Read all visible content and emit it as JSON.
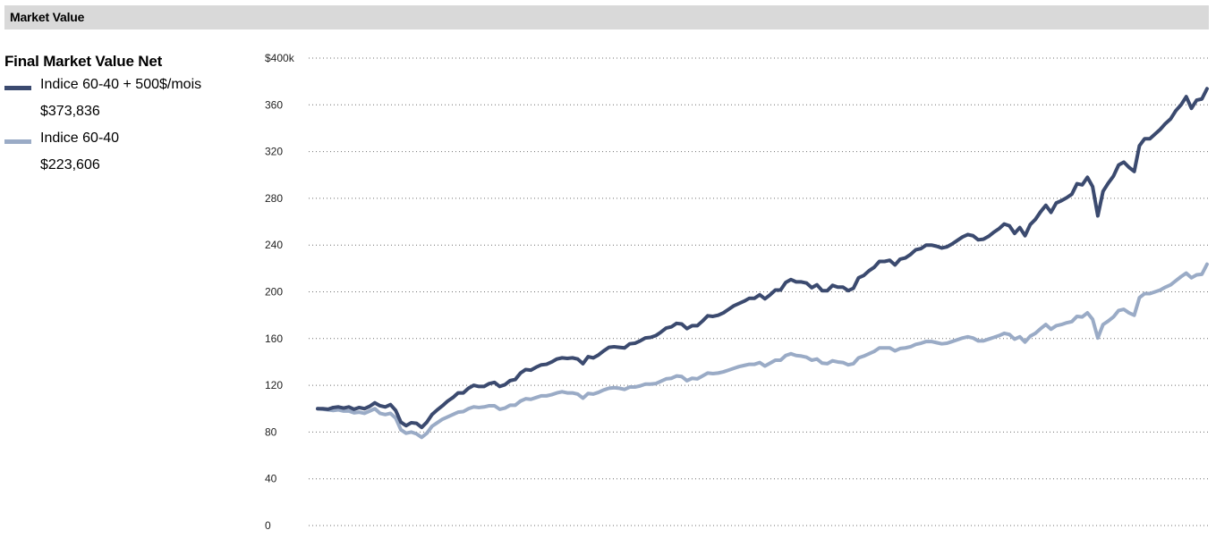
{
  "header": {
    "title": "Market Value"
  },
  "legend": {
    "title": "Final Market Value Net",
    "items": [
      {
        "name": "Indice 60-40 + 500$/mois",
        "value": "$373,836",
        "color": "#3b4a6f"
      },
      {
        "name": "Indice 60-40",
        "value": "$223,606",
        "color": "#9aabc6"
      }
    ]
  },
  "chart_data": {
    "type": "line",
    "title": "",
    "xlabel": "",
    "ylabel": "",
    "ylim": [
      0,
      400
    ],
    "grid": true,
    "yticks": [
      "0",
      "40",
      "80",
      "120",
      "160",
      "200",
      "240",
      "280",
      "320",
      "360",
      "$400k"
    ],
    "series": [
      {
        "name": "Indice 60-40 + 500$/mois",
        "color": "#3b4a6f",
        "values": [
          100,
          100,
          99.5,
          101,
          101.5,
          100.5,
          101.5,
          99.5,
          101,
          100,
          102,
          105,
          102.5,
          101.5,
          103.5,
          98.5,
          88.5,
          85.5,
          88,
          87.5,
          84,
          88.5,
          95,
          99,
          102.5,
          106.5,
          109.5,
          113.5,
          113.5,
          117.5,
          120,
          119,
          119,
          121.5,
          122.5,
          119,
          120.5,
          124,
          125,
          130.5,
          133.5,
          133,
          135.5,
          137.5,
          138,
          140,
          142.5,
          143.5,
          143,
          143.5,
          142.5,
          138.5,
          144.5,
          143.5,
          146,
          149.5,
          152.5,
          153,
          152.5,
          152,
          155.5,
          156,
          158,
          160.5,
          161,
          162.5,
          165.5,
          169,
          170,
          173,
          172.5,
          168.5,
          171,
          171,
          175,
          179.5,
          179,
          180,
          182,
          185,
          188,
          190,
          192,
          194.5,
          194.5,
          197.5,
          194,
          197.5,
          201.5,
          201.5,
          208,
          210.5,
          208.5,
          208.5,
          207.5,
          203.5,
          206,
          201,
          201,
          205.5,
          204,
          204,
          201,
          203,
          212,
          214,
          218,
          221,
          226,
          226,
          227,
          223,
          228,
          229,
          232,
          236,
          237,
          240,
          240,
          239,
          237.5,
          238.5,
          241,
          244,
          247,
          249,
          248,
          244.5,
          245,
          247.5,
          251,
          254,
          258,
          256.5,
          250,
          255,
          248,
          257.5,
          262,
          268.5,
          274,
          268,
          276,
          278,
          280.5,
          283.5,
          292.5,
          291.5,
          298,
          290,
          265,
          286,
          293,
          299,
          308.5,
          311,
          306.5,
          303,
          325,
          331,
          331,
          335,
          339,
          344,
          348,
          355,
          360,
          367,
          357,
          364,
          365,
          373.8
        ]
      },
      {
        "name": "Indice 60-40",
        "color": "#9aabc6",
        "values": [
          100,
          99.5,
          99,
          98.5,
          99,
          98,
          98,
          96.5,
          97,
          96,
          98,
          100,
          96,
          95,
          96,
          92,
          82,
          79,
          80,
          78.5,
          75.5,
          79,
          85,
          88,
          91,
          93,
          95,
          97,
          97.5,
          100,
          101.5,
          101,
          101.5,
          102.5,
          102.5,
          99.5,
          100.5,
          103,
          103,
          106.5,
          108.5,
          108,
          109.5,
          111,
          111,
          112,
          113.5,
          114.5,
          113.5,
          113.5,
          112.5,
          109,
          113,
          112.5,
          114,
          116,
          117.5,
          118,
          117.5,
          116.5,
          118.5,
          118.5,
          119.5,
          121,
          121,
          121.5,
          123.5,
          125.5,
          126,
          128,
          127.5,
          124,
          126,
          125.5,
          128,
          130.5,
          130,
          130.5,
          131.5,
          133,
          134.5,
          136,
          137,
          138,
          138,
          139.5,
          136.5,
          139,
          141.5,
          141.5,
          145.5,
          147,
          145.5,
          145,
          144,
          141.5,
          142.5,
          139,
          138.5,
          141,
          140,
          139.5,
          137.5,
          138.5,
          143.5,
          145,
          147,
          149,
          152,
          152,
          152,
          149.5,
          151.5,
          152,
          153,
          155,
          156,
          157.5,
          157.5,
          156.5,
          155.5,
          156,
          157.5,
          159,
          160.5,
          161.5,
          160.5,
          158,
          158,
          159.5,
          161,
          162.5,
          164.5,
          163.5,
          159.5,
          161.5,
          157,
          162,
          164.5,
          168.5,
          172,
          168,
          171,
          172,
          173.5,
          174.5,
          179,
          178.5,
          182,
          176.5,
          160.5,
          172,
          175,
          178.5,
          184,
          185,
          182,
          180,
          195,
          198.5,
          198.5,
          200,
          201.5,
          204,
          206,
          209.5,
          213,
          216,
          212,
          214.5,
          215,
          223.6
        ]
      }
    ]
  }
}
